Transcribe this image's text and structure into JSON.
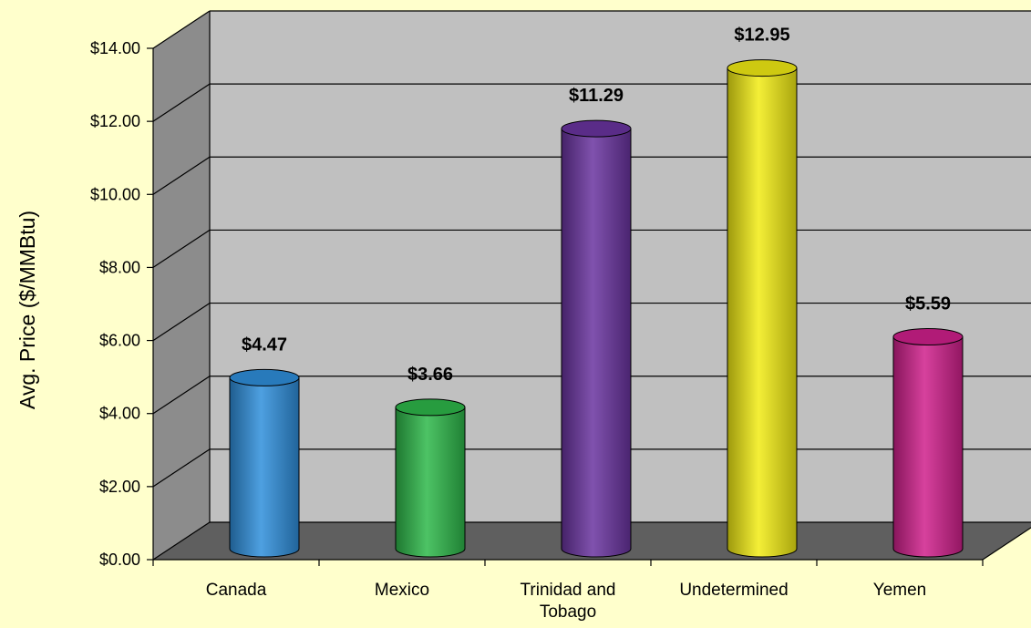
{
  "chart_data": {
    "type": "bar",
    "style": "3d-cylinder",
    "categories": [
      "Canada",
      "Mexico",
      "Trinidad and Tobago",
      "Undetermined",
      "Yemen"
    ],
    "category_lines": [
      [
        "Canada"
      ],
      [
        "Mexico"
      ],
      [
        "Trinidad and",
        "Tobago"
      ],
      [
        "Undetermined"
      ],
      [
        "Yemen"
      ]
    ],
    "values": [
      4.47,
      3.66,
      11.29,
      12.95,
      5.59
    ],
    "value_labels": [
      "$4.47",
      "$3.66",
      "$11.29",
      "$12.95",
      "$5.59"
    ],
    "colors": [
      "#2f8fdc",
      "#2eb84a",
      "#6a34a0",
      "#f2ec14",
      "#d0208c"
    ],
    "ylabel": "Avg. Price ($/MMBtu)",
    "xlabel": "",
    "title": "",
    "ylim": [
      0,
      14
    ],
    "yticks": [
      0,
      2,
      4,
      6,
      8,
      10,
      12,
      14
    ],
    "ytick_labels": [
      "$0.00",
      "$2.00",
      "$4.00",
      "$6.00",
      "$8.00",
      "$10.00",
      "$12.00",
      "$14.00"
    ],
    "grid": true,
    "legend": "none",
    "background": "#ffffcc",
    "wall_color": "#c0c0c0",
    "floor_color": "#5f5f5f"
  }
}
